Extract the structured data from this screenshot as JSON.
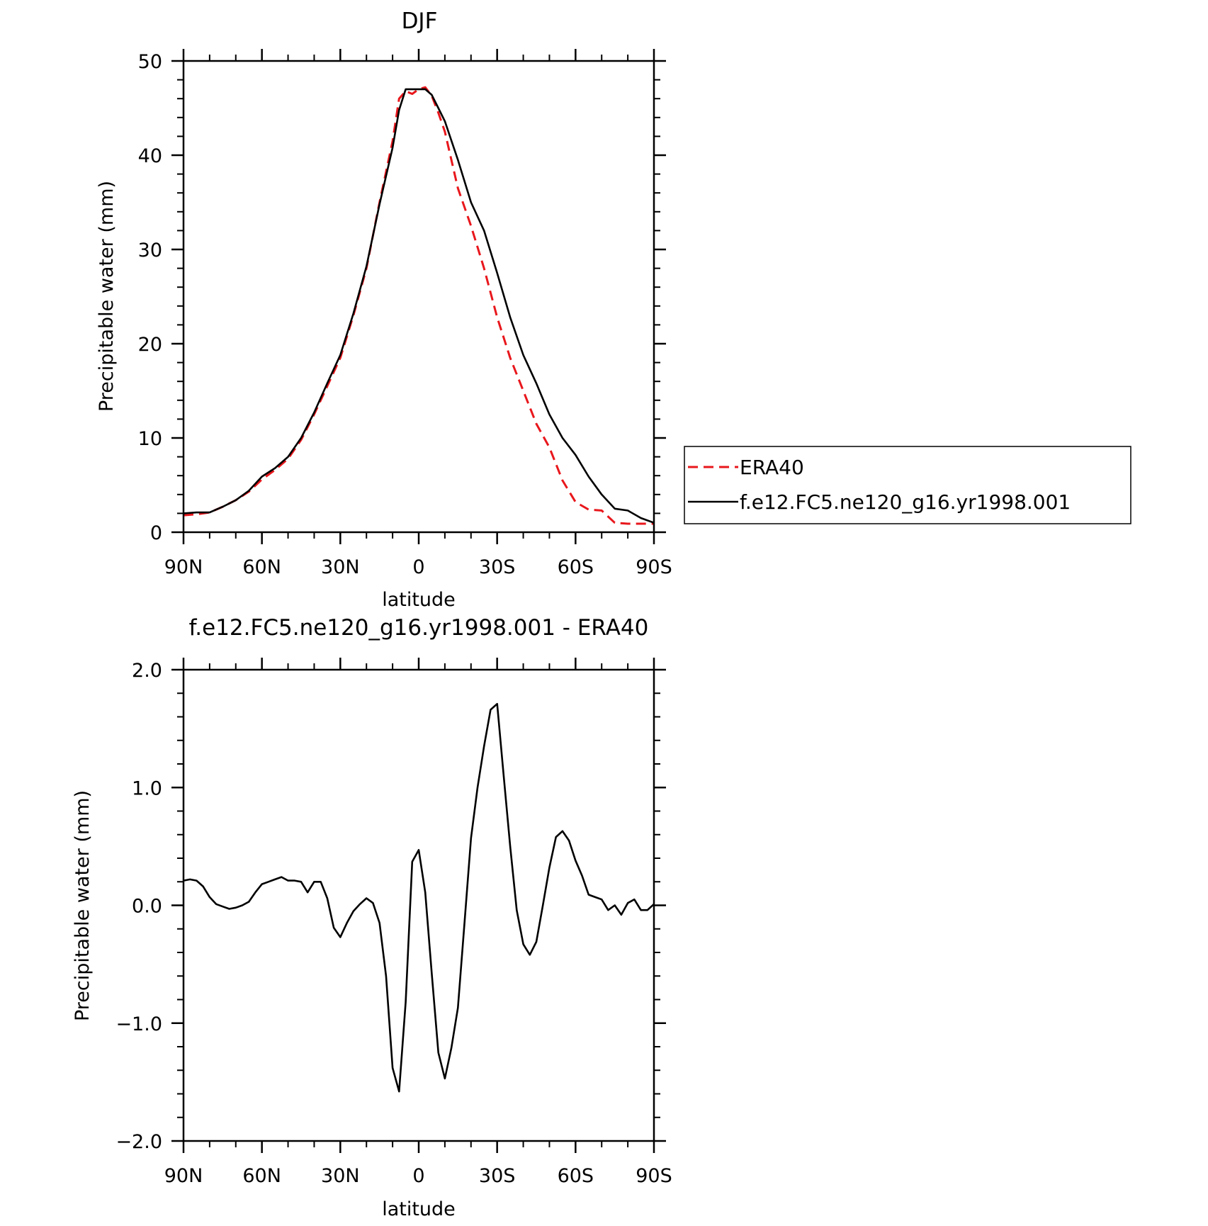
{
  "chart_data": [
    {
      "type": "line",
      "title": "DJF",
      "xlabel": "latitude",
      "ylabel": "Precipitable water (mm)",
      "xlim": [
        90,
        -90
      ],
      "ylim": [
        0,
        50
      ],
      "x_ticks": [
        90,
        60,
        30,
        0,
        -30,
        -60,
        -90
      ],
      "x_tick_labels": [
        "90N",
        "60N",
        "30N",
        "0",
        "30S",
        "60S",
        "90S"
      ],
      "y_ticks": [
        0,
        10,
        20,
        30,
        40,
        50
      ],
      "y_tick_labels": [
        "0",
        "10",
        "20",
        "30",
        "40",
        "50"
      ],
      "grid": false,
      "legend_position": "right",
      "series": [
        {
          "name": "ERA40",
          "color": "#e8171c",
          "dash": "dashed",
          "x": [
            90,
            85,
            80,
            75,
            70,
            65,
            60,
            55,
            50,
            45,
            40,
            35,
            30,
            25,
            20,
            15,
            10,
            7.5,
            5,
            2.5,
            0,
            -2.5,
            -5,
            -7.5,
            -10,
            -15,
            -20,
            -25,
            -30,
            -35,
            -40,
            -45,
            -50,
            -55,
            -60,
            -65,
            -70,
            -75,
            -80,
            -85,
            -90
          ],
          "values": [
            1.8,
            1.9,
            2.1,
            2.7,
            3.4,
            4.3,
            5.6,
            6.6,
            7.8,
            9.8,
            12.5,
            15.5,
            18.5,
            23.0,
            28.0,
            35.0,
            41.5,
            46.0,
            46.8,
            46.5,
            47.0,
            47.2,
            46.3,
            44.5,
            42.5,
            36.5,
            32.5,
            28.0,
            22.8,
            18.5,
            15.0,
            11.5,
            9.0,
            5.5,
            3.2,
            2.4,
            2.3,
            1.0,
            0.9,
            0.9,
            0.9
          ]
        },
        {
          "name": "f.e12.FC5.ne120_g16.yr1998.001",
          "color": "#000000",
          "dash": "solid",
          "x": [
            90,
            85,
            80,
            75,
            70,
            65,
            60,
            55,
            50,
            45,
            40,
            35,
            30,
            25,
            20,
            15,
            10,
            7.5,
            5,
            2.5,
            0,
            -2.5,
            -5,
            -7.5,
            -10,
            -15,
            -20,
            -25,
            -30,
            -35,
            -40,
            -45,
            -50,
            -55,
            -60,
            -65,
            -70,
            -75,
            -80,
            -85,
            -90
          ],
          "values": [
            2.0,
            2.1,
            2.1,
            2.7,
            3.4,
            4.4,
            5.9,
            6.8,
            8.0,
            10.0,
            12.7,
            15.8,
            18.8,
            23.2,
            28.2,
            34.8,
            40.8,
            44.8,
            47.0,
            47.0,
            47.0,
            47.0,
            46.4,
            45.0,
            43.6,
            39.5,
            35.0,
            32.0,
            27.5,
            22.8,
            18.8,
            15.8,
            12.5,
            10.0,
            8.2,
            5.9,
            4.0,
            2.5,
            2.3,
            1.5,
            1.0
          ]
        }
      ]
    },
    {
      "type": "line",
      "title": "f.e12.FC5.ne120_g16.yr1998.001 - ERA40",
      "xlabel": "latitude",
      "ylabel": "Precipitable water (mm)",
      "xlim": [
        90,
        -90
      ],
      "ylim": [
        -2.0,
        2.0
      ],
      "x_ticks": [
        90,
        60,
        30,
        0,
        -30,
        -60,
        -90
      ],
      "x_tick_labels": [
        "90N",
        "60N",
        "30N",
        "0",
        "30S",
        "60S",
        "90S"
      ],
      "y_ticks": [
        -2.0,
        -1.0,
        0.0,
        1.0,
        2.0
      ],
      "y_tick_labels": [
        "−2.0",
        "−1.0",
        "0.0",
        "1.0",
        "2.0"
      ],
      "grid": false,
      "series": [
        {
          "color": "#000000",
          "dash": "solid",
          "x": [
            90,
            87.5,
            85,
            82.5,
            80,
            77.5,
            75,
            72.5,
            70,
            67.5,
            65,
            62.5,
            60,
            57.5,
            55,
            52.5,
            50,
            47.5,
            45,
            42.5,
            40,
            37.5,
            35,
            32.5,
            30,
            27.5,
            25,
            22.5,
            20,
            17.5,
            15,
            12.5,
            10,
            7.5,
            5,
            2.5,
            0,
            -2.5,
            -5,
            -7.5,
            -10,
            -12.5,
            -15,
            -17.5,
            -20,
            -22.5,
            -25,
            -27.5,
            -30,
            -32.5,
            -35,
            -37.5,
            -40,
            -42.5,
            -45,
            -47.5,
            -50,
            -52.5,
            -55,
            -57.5,
            -60,
            -62.5,
            -65,
            -67.5,
            -70,
            -72.5,
            -75,
            -77.5,
            -80,
            -82.5,
            -85,
            -87.5,
            -90
          ],
          "values": [
            0.21,
            0.22,
            0.21,
            0.16,
            0.07,
            0.01,
            -0.01,
            -0.03,
            -0.02,
            0.0,
            0.03,
            0.11,
            0.18,
            0.2,
            0.22,
            0.24,
            0.21,
            0.21,
            0.2,
            0.11,
            0.2,
            0.2,
            0.06,
            -0.19,
            -0.27,
            -0.15,
            -0.05,
            0.01,
            0.06,
            0.02,
            -0.15,
            -0.6,
            -1.38,
            -1.58,
            -0.82,
            0.37,
            0.47,
            0.11,
            -0.58,
            -1.25,
            -1.47,
            -1.21,
            -0.87,
            -0.15,
            0.57,
            1.0,
            1.35,
            1.66,
            1.71,
            1.1,
            0.5,
            -0.04,
            -0.33,
            -0.42,
            -0.31,
            0.0,
            0.32,
            0.58,
            0.63,
            0.55,
            0.38,
            0.25,
            0.09,
            0.07,
            0.05,
            -0.04,
            0.0,
            -0.08,
            0.02,
            0.05,
            -0.04,
            -0.04,
            0.01
          ]
        }
      ]
    }
  ]
}
